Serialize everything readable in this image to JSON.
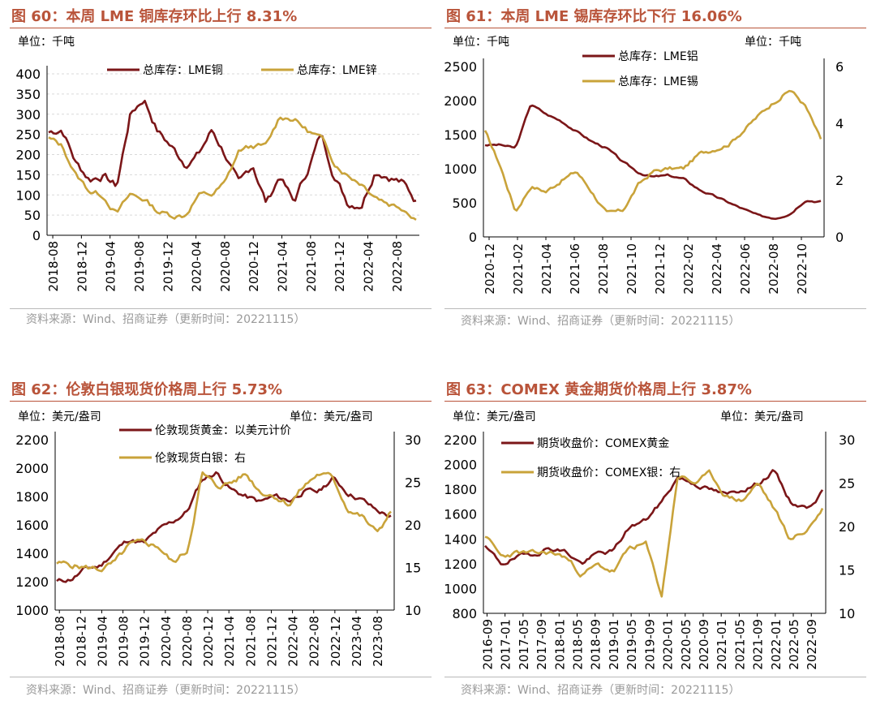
{
  "colors": {
    "title": "#b9543a",
    "series_dark": "#7b1618",
    "series_gold": "#c9a33a",
    "axis": "#000000",
    "grid": "#d9d9d9",
    "source": "#9a9a9a"
  },
  "source_note": "资料来源：Wind、招商证券（更新时间：20221115）",
  "chart_data": [
    {
      "type": "line",
      "title": "图 60：本周 LME 铜库存环比上行 8.31%",
      "unit_left": "单位：千吨",
      "unit_right": "",
      "ylim": [
        0,
        400
      ],
      "yticks": [
        "0",
        "50",
        "100",
        "150",
        "200",
        "250",
        "300",
        "350",
        "400"
      ],
      "xticks": [
        "2018-08",
        "2018-12",
        "2019-04",
        "2019-08",
        "2019-12",
        "2020-04",
        "2020-08",
        "2020-12",
        "2021-04",
        "2021-08",
        "2021-12",
        "2022-04",
        "2022-08"
      ],
      "legend_position": "top",
      "series": [
        {
          "name": "总库存：LME铜",
          "axis": "left",
          "color": "dark",
          "values": [
            255,
            265,
            180,
            140,
            150,
            120,
            300,
            340,
            260,
            220,
            180,
            200,
            260,
            200,
            120,
            175,
            80,
            150,
            80,
            160,
            250,
            150,
            80,
            80,
            165,
            150,
            130,
            85
          ]
        },
        {
          "name": "总库存：LME锌",
          "axis": "left",
          "color": "gold",
          "values": [
            240,
            220,
            150,
            110,
            100,
            55,
            100,
            90,
            60,
            50,
            50,
            100,
            100,
            130,
            210,
            220,
            220,
            295,
            290,
            260,
            240,
            180,
            150,
            130,
            100,
            80,
            70,
            45
          ]
        }
      ]
    },
    {
      "type": "line",
      "title": "图 61：本周 LME 锡库存环比下行 16.06%",
      "unit_left": "单位：千吨",
      "unit_right": "单位：千吨",
      "ylim": [
        0,
        2500
      ],
      "ylim_right": [
        0,
        6
      ],
      "yticks": [
        "0",
        "500",
        "1000",
        "1500",
        "2000",
        "2500"
      ],
      "yticks_right": [
        "0",
        "2",
        "4",
        "6"
      ],
      "xticks": [
        "2020-12",
        "2021-02",
        "2021-04",
        "2021-06",
        "2021-08",
        "2021-10",
        "2021-12",
        "2022-02",
        "2022-04",
        "2022-06",
        "2022-08",
        "2022-10"
      ],
      "legend_position": "top-left",
      "series": [
        {
          "name": "总库存：LME铝",
          "axis": "left",
          "color": "dark",
          "values": [
            1350,
            1350,
            1300,
            1950,
            1800,
            1700,
            1550,
            1400,
            1300,
            1100,
            950,
            880,
            900,
            850,
            700,
            600,
            500,
            400,
            300,
            280,
            350,
            550,
            520
          ]
        },
        {
          "name": "总库存：LME锡",
          "axis": "right",
          "color": "gold",
          "values": [
            3.7,
            2.5,
            0.9,
            1.8,
            1.6,
            2.0,
            2.3,
            1.6,
            0.8,
            0.9,
            1.8,
            2.3,
            2.4,
            2.4,
            2.9,
            3.1,
            3.3,
            3.8,
            4.3,
            4.8,
            5.2,
            4.6,
            3.4
          ]
        }
      ]
    },
    {
      "type": "line",
      "title": "图 62：伦敦白银现货价格周上行 5.73%",
      "unit_left": "单位：美元/盎司",
      "unit_right": "单位：美元/盎司",
      "ylim": [
        1000,
        2200
      ],
      "ylim_right": [
        10,
        30
      ],
      "yticks": [
        "1000",
        "1200",
        "1400",
        "1600",
        "1800",
        "2000",
        "2200"
      ],
      "yticks_right": [
        "10",
        "15",
        "20",
        "25",
        "30"
      ],
      "xticks": [
        "2018-08",
        "2018-12",
        "2019-04",
        "2019-08",
        "2019-12",
        "2020-04",
        "2020-08",
        "2020-12",
        "2021-04",
        "2021-08",
        "2021-12",
        "2022-04",
        "2022-08",
        "2022-12",
        "2023-04",
        "2023-08"
      ],
      "legend_position": "top",
      "series": [
        {
          "name": "伦敦现货黄金：以美元计价",
          "axis": "left",
          "color": "dark",
          "values": [
            1200,
            1220,
            1290,
            1310,
            1420,
            1500,
            1470,
            1560,
            1620,
            1700,
            1920,
            1970,
            1850,
            1800,
            1760,
            1800,
            1770,
            1840,
            1830,
            1930,
            1830,
            1780,
            1700,
            1660
          ]
        },
        {
          "name": "伦敦现货白银：右",
          "axis": "right",
          "color": "gold",
          "values": [
            15.5,
            15.3,
            15.0,
            14.8,
            15.5,
            17.5,
            17.8,
            17.5,
            15.5,
            17.0,
            26.0,
            24.5,
            25.0,
            26.0,
            24.0,
            23.5,
            22.5,
            24.5,
            26.0,
            25.5,
            22.0,
            21.0,
            19.0,
            21.5
          ]
        }
      ]
    },
    {
      "type": "line",
      "title": "图 63：COMEX 黄金期货价格周上行 3.87%",
      "unit_left": "单位：美元/盎司",
      "unit_right": "单位：美元/盎司",
      "ylim": [
        800,
        2200
      ],
      "ylim_right": [
        10,
        30
      ],
      "yticks": [
        "800",
        "1000",
        "1200",
        "1400",
        "1600",
        "1800",
        "2000",
        "2200"
      ],
      "yticks_right": [
        "10",
        "15",
        "20",
        "25",
        "30"
      ],
      "xticks": [
        "2016-09",
        "2017-01",
        "2017-05",
        "2017-09",
        "2018-01",
        "2018-05",
        "2018-09",
        "2019-01",
        "2019-05",
        "2019-09",
        "2020-01",
        "2020-05",
        "2020-09",
        "2021-01",
        "2021-05",
        "2021-09",
        "2022-01",
        "2022-05",
        "2022-09"
      ],
      "legend_position": "top-left",
      "series": [
        {
          "name": "期货收盘价：COMEX黄金",
          "axis": "left",
          "color": "dark",
          "values": [
            1330,
            1200,
            1250,
            1280,
            1330,
            1300,
            1200,
            1280,
            1300,
            1500,
            1550,
            1700,
            1900,
            1850,
            1800,
            1750,
            1800,
            1850,
            1950,
            1700,
            1650,
            1780
          ]
        },
        {
          "name": "期货收盘价：COMEX银：右",
          "axis": "right",
          "color": "gold",
          "values": [
            19.0,
            16.5,
            17.0,
            16.8,
            17.0,
            16.5,
            14.5,
            15.5,
            14.8,
            17.5,
            18.0,
            12.0,
            26.0,
            25.0,
            26.0,
            23.5,
            23.0,
            25.0,
            22.0,
            18.5,
            19.5,
            22.0
          ]
        }
      ]
    }
  ]
}
